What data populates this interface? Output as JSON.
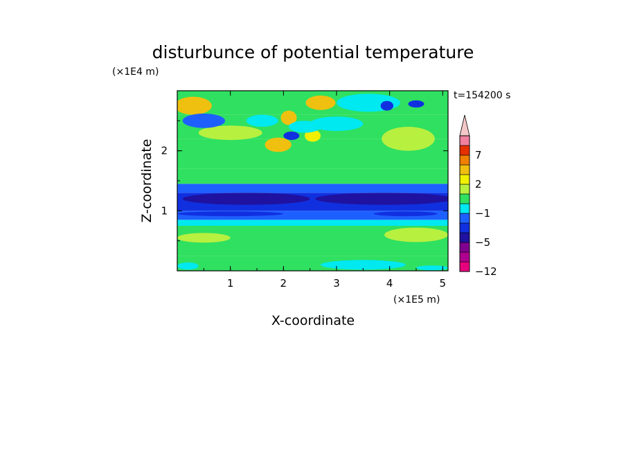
{
  "chart_data": {
    "type": "heatmap",
    "title": "disturbunce of potential temperature",
    "time_label": "t=154200 s",
    "xlabel": "X-coordinate",
    "ylabel": "Z-coordinate",
    "x_unit": "(×1E5 m)",
    "y_unit": "(×1E4 m)",
    "xlim": [
      0,
      5.1
    ],
    "ylim": [
      0,
      3.0
    ],
    "x_ticks": [
      1,
      2,
      3,
      4,
      5
    ],
    "y_ticks": [
      1,
      2
    ],
    "colorbar": {
      "levels": [
        -12,
        -9,
        -7,
        -5,
        -3,
        -2,
        -1,
        0,
        1,
        2,
        3,
        5,
        7,
        9,
        11
      ],
      "labels": [
        {
          "value": 7,
          "text": "7"
        },
        {
          "value": 2,
          "text": "2"
        },
        {
          "value": -1,
          "text": "−1"
        },
        {
          "value": -5,
          "text": "−5"
        },
        {
          "value": -12,
          "text": "−12"
        }
      ],
      "colors": [
        "#e6007e",
        "#b0008f",
        "#800090",
        "#1f12a0",
        "#1030e0",
        "#1e60ff",
        "#00e8f0",
        "#30e060",
        "#b8f040",
        "#f0f000",
        "#f0c010",
        "#f08000",
        "#e63000",
        "#f080a0",
        "#f4c8c8"
      ],
      "extend_top": true
    },
    "bands": [
      {
        "y_from": 0.0,
        "y_to": 0.25,
        "value": 0.6
      },
      {
        "y_from": 0.25,
        "y_to": 0.45,
        "value": 0.0
      },
      {
        "y_from": 0.45,
        "y_to": 0.75,
        "value": 0.7
      },
      {
        "y_from": 0.75,
        "y_to": 0.85,
        "value": -0.2
      },
      {
        "y_from": 0.85,
        "y_to": 1.0,
        "value": -1.5
      },
      {
        "y_from": 1.0,
        "y_to": 1.3,
        "value": -2.5
      },
      {
        "y_from": 1.3,
        "y_to": 1.45,
        "value": -1.2
      },
      {
        "y_from": 1.45,
        "y_to": 1.7,
        "value": 0.2
      },
      {
        "y_from": 1.7,
        "y_to": 2.2,
        "value": 0.8
      },
      {
        "y_from": 2.2,
        "y_to": 2.6,
        "value": 0.4
      },
      {
        "y_from": 2.6,
        "y_to": 3.0,
        "value": 0.9
      }
    ],
    "features": [
      {
        "x": 0.3,
        "y": 2.75,
        "rx": 0.35,
        "ry": 0.15,
        "value": 3.0
      },
      {
        "x": 1.0,
        "y": 2.3,
        "rx": 0.6,
        "ry": 0.12,
        "value": 1.2
      },
      {
        "x": 1.6,
        "y": 2.5,
        "rx": 0.3,
        "ry": 0.1,
        "value": -0.8
      },
      {
        "x": 0.5,
        "y": 2.5,
        "rx": 0.4,
        "ry": 0.12,
        "value": -1.5
      },
      {
        "x": 1.9,
        "y": 2.1,
        "rx": 0.25,
        "ry": 0.12,
        "value": 3.0
      },
      {
        "x": 2.1,
        "y": 2.55,
        "rx": 0.15,
        "ry": 0.12,
        "value": 3.5
      },
      {
        "x": 2.7,
        "y": 2.8,
        "rx": 0.28,
        "ry": 0.12,
        "value": 4.0
      },
      {
        "x": 2.55,
        "y": 2.25,
        "rx": 0.15,
        "ry": 0.1,
        "value": 2.8
      },
      {
        "x": 2.4,
        "y": 2.4,
        "rx": 0.3,
        "ry": 0.1,
        "value": -0.5
      },
      {
        "x": 2.15,
        "y": 2.25,
        "rx": 0.15,
        "ry": 0.07,
        "value": -2.5
      },
      {
        "x": 3.0,
        "y": 2.45,
        "rx": 0.5,
        "ry": 0.12,
        "value": -0.5
      },
      {
        "x": 3.6,
        "y": 2.8,
        "rx": 0.6,
        "ry": 0.15,
        "value": -0.5
      },
      {
        "x": 3.95,
        "y": 2.75,
        "rx": 0.12,
        "ry": 0.08,
        "value": -2.5
      },
      {
        "x": 4.5,
        "y": 2.78,
        "rx": 0.15,
        "ry": 0.06,
        "value": -2.5
      },
      {
        "x": 4.35,
        "y": 2.2,
        "rx": 0.5,
        "ry": 0.2,
        "value": 1.5
      },
      {
        "x": 4.9,
        "y": 2.75,
        "rx": 0.25,
        "ry": 0.12,
        "value": 0.2
      },
      {
        "x": 1.3,
        "y": 1.2,
        "rx": 1.2,
        "ry": 0.1,
        "value": -3.5
      },
      {
        "x": 3.9,
        "y": 1.2,
        "rx": 1.3,
        "ry": 0.1,
        "value": -3.5
      },
      {
        "x": 1.0,
        "y": 0.95,
        "rx": 1.0,
        "ry": 0.04,
        "value": -3.0
      },
      {
        "x": 4.3,
        "y": 0.95,
        "rx": 0.6,
        "ry": 0.04,
        "value": -3.0
      },
      {
        "x": 0.5,
        "y": 0.55,
        "rx": 0.5,
        "ry": 0.08,
        "value": 1.8
      },
      {
        "x": 1.6,
        "y": 0.5,
        "rx": 0.5,
        "ry": 0.1,
        "value": 0.0
      },
      {
        "x": 2.8,
        "y": 0.55,
        "rx": 0.6,
        "ry": 0.1,
        "value": 0.0
      },
      {
        "x": 4.5,
        "y": 0.6,
        "rx": 0.6,
        "ry": 0.12,
        "value": 1.2
      },
      {
        "x": 0.2,
        "y": 0.08,
        "rx": 0.2,
        "ry": 0.06,
        "value": -0.3
      },
      {
        "x": 3.5,
        "y": 0.1,
        "rx": 0.8,
        "ry": 0.08,
        "value": -0.2
      },
      {
        "x": 4.8,
        "y": 0.05,
        "rx": 0.3,
        "ry": 0.04,
        "value": -0.8
      }
    ]
  }
}
